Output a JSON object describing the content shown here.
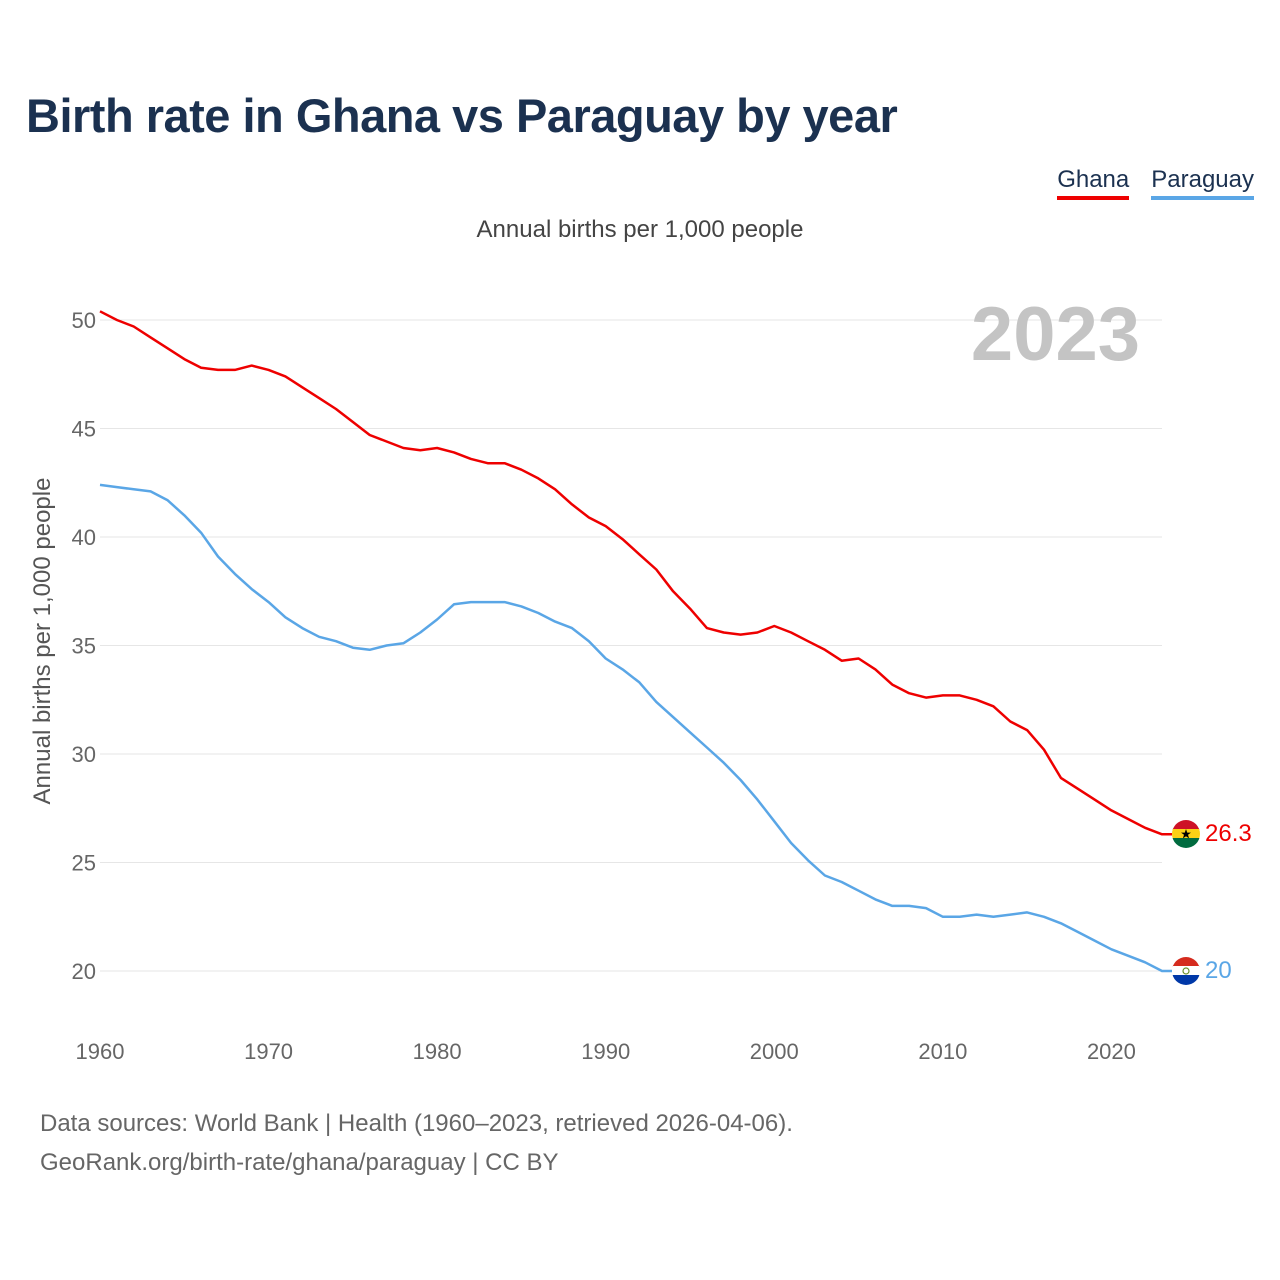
{
  "title": "Birth rate in Ghana vs Paraguay by year",
  "subtitle": "Annual births per 1,000 people",
  "legend": {
    "ghana": "Ghana",
    "paraguay": "Paraguay"
  },
  "footer": {
    "line1": "Data sources: World Bank | Health (1960–2023, retrieved 2026-04-06).",
    "line2": "GeoRank.org/birth-rate/ghana/paraguay | CC BY"
  },
  "colors": {
    "ghana": "#ee0000",
    "paraguay": "#5aa6e6",
    "grid": "#e6e6e6"
  },
  "chart_data": {
    "type": "line",
    "title": "Birth rate in Ghana vs Paraguay by year",
    "xlabel": "",
    "ylabel": "Annual births per 1,000 people",
    "year_label": "2023",
    "xlim": [
      1960,
      2023
    ],
    "ylim": [
      20,
      50
    ],
    "xticks": [
      1960,
      1970,
      1980,
      1990,
      2000,
      2010,
      2020
    ],
    "yticks": [
      20,
      25,
      30,
      35,
      40,
      45,
      50
    ],
    "x": [
      1960,
      1961,
      1962,
      1963,
      1964,
      1965,
      1966,
      1967,
      1968,
      1969,
      1970,
      1971,
      1972,
      1973,
      1974,
      1975,
      1976,
      1977,
      1978,
      1979,
      1980,
      1981,
      1982,
      1983,
      1984,
      1985,
      1986,
      1987,
      1988,
      1989,
      1990,
      1991,
      1992,
      1993,
      1994,
      1995,
      1996,
      1997,
      1998,
      1999,
      2000,
      2001,
      2002,
      2003,
      2004,
      2005,
      2006,
      2007,
      2008,
      2009,
      2010,
      2011,
      2012,
      2013,
      2014,
      2015,
      2016,
      2017,
      2018,
      2019,
      2020,
      2021,
      2022,
      2023
    ],
    "series": [
      {
        "name": "Ghana",
        "end_label": "26.3",
        "values": [
          50.4,
          50.0,
          49.7,
          49.2,
          48.7,
          48.2,
          47.8,
          47.7,
          47.7,
          47.9,
          47.7,
          47.4,
          46.9,
          46.4,
          45.9,
          45.3,
          44.7,
          44.4,
          44.1,
          44.0,
          44.1,
          43.9,
          43.6,
          43.4,
          43.4,
          43.1,
          42.7,
          42.2,
          41.5,
          40.9,
          40.5,
          39.9,
          39.2,
          38.5,
          37.5,
          36.7,
          35.8,
          35.6,
          35.5,
          35.6,
          35.9,
          35.6,
          35.2,
          34.8,
          34.3,
          34.4,
          33.9,
          33.2,
          32.8,
          32.6,
          32.7,
          32.7,
          32.5,
          32.2,
          31.5,
          31.1,
          30.2,
          28.9,
          28.4,
          27.9,
          27.4,
          27.0,
          26.6,
          26.3
        ]
      },
      {
        "name": "Paraguay",
        "end_label": "20",
        "values": [
          42.4,
          42.3,
          42.2,
          42.1,
          41.7,
          41.0,
          40.2,
          39.1,
          38.3,
          37.6,
          37.0,
          36.3,
          35.8,
          35.4,
          35.2,
          34.9,
          34.8,
          35.0,
          35.1,
          35.6,
          36.2,
          36.9,
          37.0,
          37.0,
          37.0,
          36.8,
          36.5,
          36.1,
          35.8,
          35.2,
          34.4,
          33.9,
          33.3,
          32.4,
          31.7,
          31.0,
          30.3,
          29.6,
          28.8,
          27.9,
          26.9,
          25.9,
          25.1,
          24.4,
          24.1,
          23.7,
          23.3,
          23.0,
          23.0,
          22.9,
          22.5,
          22.5,
          22.6,
          22.5,
          22.6,
          22.7,
          22.5,
          22.2,
          21.8,
          21.4,
          21.0,
          20.7,
          20.4,
          20.0
        ]
      }
    ]
  }
}
